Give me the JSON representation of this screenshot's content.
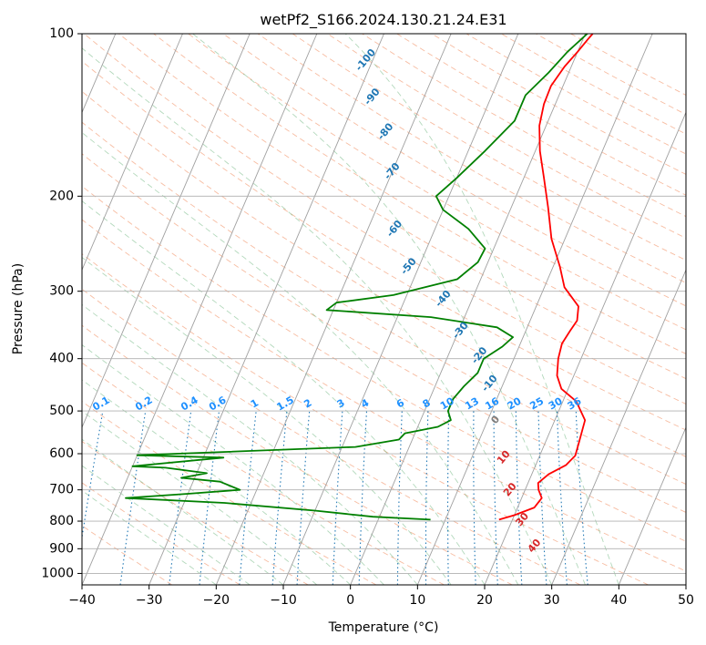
{
  "chart_data": {
    "type": "line",
    "title": "wetPf2_S166.2024.130.21.24.E31",
    "xlabel": "Temperature (°C)",
    "ylabel": "Pressure (hPa)",
    "xlim": [
      -40,
      50
    ],
    "ylim": [
      1050,
      100
    ],
    "y_scale": "log",
    "grid": true,
    "x_ticks": [
      -40,
      -30,
      -20,
      -10,
      0,
      10,
      20,
      30,
      40,
      50
    ],
    "y_ticks": [
      100,
      200,
      300,
      400,
      500,
      600,
      700,
      800,
      900,
      1000
    ],
    "series": [
      {
        "role": "temperature",
        "color": "#ff0000",
        "points": [
          [
            18.0,
            795
          ],
          [
            20.0,
            780
          ],
          [
            22.5,
            755
          ],
          [
            23.0,
            725
          ],
          [
            22.0,
            700
          ],
          [
            21.5,
            680
          ],
          [
            22.5,
            655
          ],
          [
            24.5,
            630
          ],
          [
            25.3,
            605
          ],
          [
            25.0,
            570
          ],
          [
            24.5,
            520
          ],
          [
            22.0,
            480
          ],
          [
            19.0,
            455
          ],
          [
            17.5,
            430
          ],
          [
            16.6,
            400
          ],
          [
            16.2,
            375
          ],
          [
            16.6,
            355
          ],
          [
            17.0,
            340
          ],
          [
            16.3,
            320
          ],
          [
            13.0,
            295
          ],
          [
            11.0,
            270
          ],
          [
            8.0,
            240
          ],
          [
            5.5,
            210
          ],
          [
            3.0,
            185
          ],
          [
            0.7,
            165
          ],
          [
            -1.0,
            148
          ],
          [
            -1.7,
            135
          ],
          [
            -1.8,
            125
          ],
          [
            -1.0,
            115
          ],
          [
            0.0,
            108
          ],
          [
            0.8,
            102
          ],
          [
            1.1,
            100
          ]
        ]
      },
      {
        "role": "dewpoint",
        "color": "#008000",
        "points": [
          [
            7.8,
            795
          ],
          [
            -1.0,
            785
          ],
          [
            -10.0,
            765
          ],
          [
            -24.0,
            740
          ],
          [
            -39.0,
            725
          ],
          [
            -30.0,
            712
          ],
          [
            -22.5,
            700
          ],
          [
            -26.0,
            676
          ],
          [
            -32.0,
            665
          ],
          [
            -28.5,
            652
          ],
          [
            -35.0,
            637
          ],
          [
            -40.0,
            633
          ],
          [
            -27.0,
            610
          ],
          [
            -40.0,
            604
          ],
          [
            -8.0,
            583
          ],
          [
            -2.0,
            565
          ],
          [
            -1.5,
            550
          ],
          [
            3.0,
            535
          ],
          [
            4.5,
            520
          ],
          [
            3.5,
            500
          ],
          [
            3.5,
            475
          ],
          [
            4.3,
            450
          ],
          [
            5.5,
            425
          ],
          [
            5.5,
            400
          ],
          [
            7.5,
            380
          ],
          [
            8.5,
            365
          ],
          [
            5.5,
            350
          ],
          [
            -5.0,
            335
          ],
          [
            -21.0,
            325
          ],
          [
            -20.0,
            315
          ],
          [
            -12.0,
            305
          ],
          [
            -3.5,
            285
          ],
          [
            -1.5,
            265
          ],
          [
            -1.3,
            250
          ],
          [
            -5.0,
            230
          ],
          [
            -10.0,
            212
          ],
          [
            -11.9,
            200
          ],
          [
            -10.0,
            185
          ],
          [
            -7.5,
            165
          ],
          [
            -5.0,
            145
          ],
          [
            -5.0,
            130
          ],
          [
            -3.0,
            118
          ],
          [
            -1.5,
            108
          ],
          [
            0.3,
            100
          ]
        ]
      }
    ],
    "dry_adiabat_labels": [
      "-100",
      "-90",
      "-80",
      "-70",
      "-60",
      "-50",
      "-40",
      "-30",
      "-20",
      "-10",
      "0",
      "10",
      "20",
      "30",
      "40"
    ],
    "mixing_ratio_labels": [
      "0.1",
      "0.2",
      "0.4",
      "0.6",
      "1",
      "1.5",
      "2",
      "3",
      "4",
      "6",
      "8",
      "10",
      "13",
      "16",
      "20",
      "25",
      "30",
      "36"
    ],
    "label_colors": {
      "cold": "#1f77b4",
      "zero": "#7f7f7f",
      "warm": "#d62728",
      "mixing": "#1e90ff"
    }
  }
}
